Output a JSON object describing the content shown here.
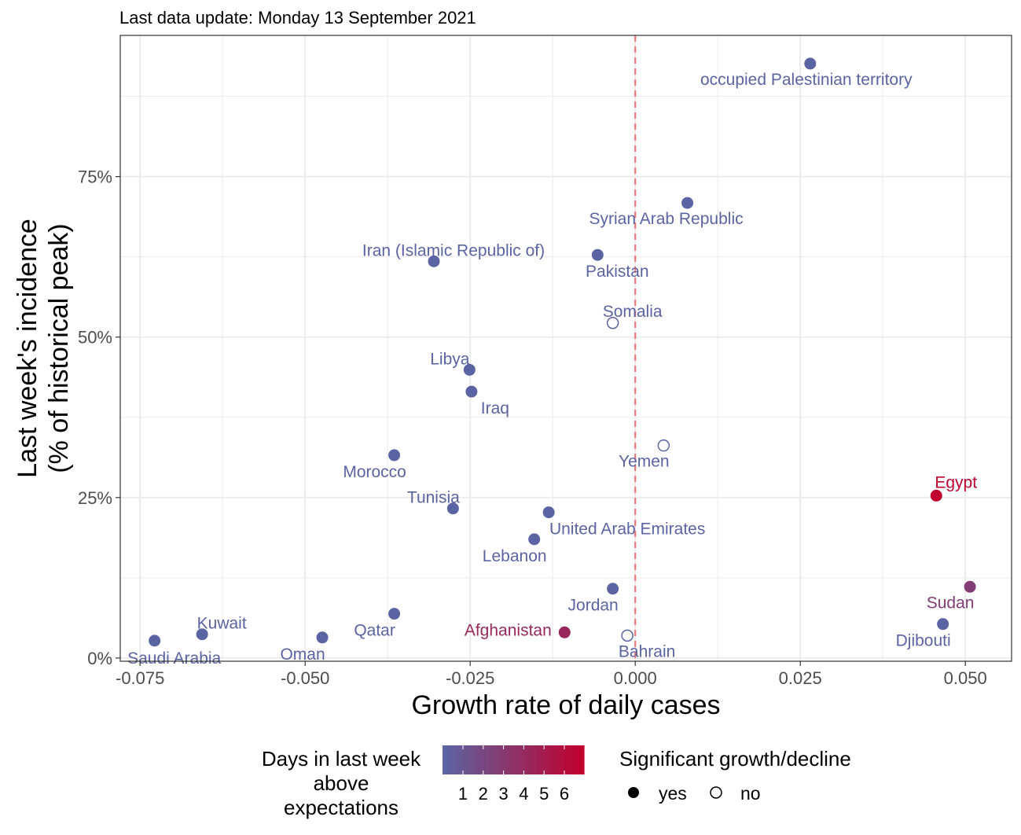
{
  "subtitle": "Last data update: Monday 13 September 2021",
  "colors": {
    "low": "#5B64A2",
    "high": "#C0002E",
    "reference_line": "#F07070",
    "grid": "#EBEBEB"
  },
  "chart_data": {
    "type": "scatter",
    "title": "",
    "subtitle": "Last data update: Monday 13 September 2021",
    "xlabel": "Growth rate of daily cases",
    "ylabel_line1": "Last week's incidence",
    "ylabel_line2": "(% of historical peak)",
    "xlim": [
      -0.078,
      0.057
    ],
    "ylim": [
      -0.5,
      97
    ],
    "x_ticks": [
      -0.075,
      -0.05,
      -0.025,
      0.0,
      0.025,
      0.05
    ],
    "x_tick_labels": [
      "-0.075",
      "-0.050",
      "-0.025",
      "0.000",
      "0.025",
      "0.050"
    ],
    "y_ticks": [
      0,
      25,
      50,
      75
    ],
    "y_tick_labels": [
      "0%",
      "25%",
      "50%",
      "75%"
    ],
    "grid": true,
    "reference_line_x": 0,
    "points": [
      {
        "label": "occupied Palestinian territory",
        "x": 0.0265,
        "y": 92.6,
        "days": 1,
        "significant": true
      },
      {
        "label": "Syrian Arab Republic",
        "x": 0.0079,
        "y": 70.9,
        "days": 1,
        "significant": true
      },
      {
        "label": "Iran (Islamic Republic of)",
        "x": -0.0305,
        "y": 61.8,
        "days": 1,
        "significant": true
      },
      {
        "label": "Pakistan",
        "x": -0.0057,
        "y": 62.8,
        "days": 1,
        "significant": true
      },
      {
        "label": "Somalia",
        "x": -0.0034,
        "y": 52.2,
        "days": 1,
        "significant": false
      },
      {
        "label": "Libya",
        "x": -0.0251,
        "y": 44.9,
        "days": 1,
        "significant": true
      },
      {
        "label": "Iraq",
        "x": -0.0248,
        "y": 41.5,
        "days": 1,
        "significant": true
      },
      {
        "label": "Yemen",
        "x": 0.0043,
        "y": 33.1,
        "days": 1,
        "significant": false
      },
      {
        "label": "Morocco",
        "x": -0.0365,
        "y": 31.6,
        "days": 1,
        "significant": true
      },
      {
        "label": "Egypt",
        "x": 0.0456,
        "y": 25.3,
        "days": 6,
        "significant": true
      },
      {
        "label": "Tunisia",
        "x": -0.0276,
        "y": 23.3,
        "days": 1,
        "significant": true
      },
      {
        "label": "United Arab Emirates",
        "x": -0.0131,
        "y": 22.7,
        "days": 1,
        "significant": true
      },
      {
        "label": "Lebanon",
        "x": -0.0153,
        "y": 18.5,
        "days": 1,
        "significant": true
      },
      {
        "label": "Sudan",
        "x": 0.0507,
        "y": 11.1,
        "days": 3,
        "significant": true
      },
      {
        "label": "Jordan",
        "x": -0.0034,
        "y": 10.8,
        "days": 1,
        "significant": true
      },
      {
        "label": "Qatar",
        "x": -0.0365,
        "y": 6.9,
        "days": 1,
        "significant": true
      },
      {
        "label": "Djibouti",
        "x": 0.0466,
        "y": 5.3,
        "days": 1,
        "significant": true
      },
      {
        "label": "Kuwait",
        "x": -0.0656,
        "y": 3.7,
        "days": 1,
        "significant": true
      },
      {
        "label": "Afghanistan",
        "x": -0.0107,
        "y": 4.0,
        "days": 4,
        "significant": true
      },
      {
        "label": "Bahrain",
        "x": -0.0012,
        "y": 3.5,
        "days": 1,
        "significant": false
      },
      {
        "label": "Oman",
        "x": -0.0474,
        "y": 3.2,
        "days": 1,
        "significant": true
      },
      {
        "label": "Saudi Arabia",
        "x": -0.0728,
        "y": 2.7,
        "days": 1,
        "significant": true
      }
    ],
    "legend_color": {
      "title_lines": [
        "Days in last week",
        "above",
        "expectations"
      ],
      "tick_labels": [
        "1",
        "2",
        "3",
        "4",
        "5",
        "6"
      ]
    },
    "legend_shape": {
      "title": "Significant growth/decline",
      "items": [
        "yes",
        "no"
      ]
    }
  }
}
